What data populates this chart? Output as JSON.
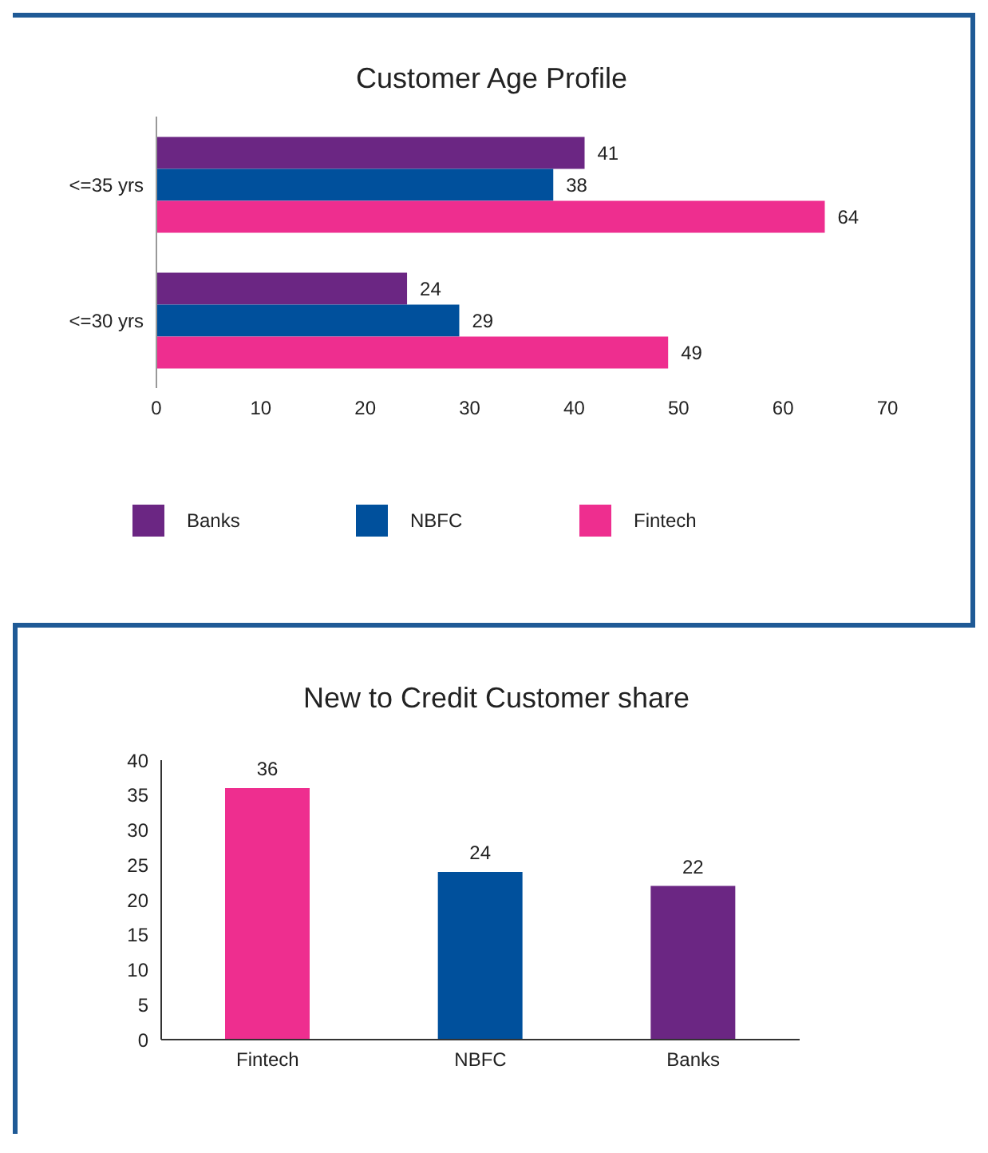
{
  "chart_data": [
    {
      "type": "bar",
      "title": "Customer Age Profile",
      "orientation": "horizontal",
      "categories": [
        "<=35 yrs",
        "<=30 yrs"
      ],
      "series": [
        {
          "name": "Banks",
          "color": "#6b2683",
          "values": [
            41,
            24
          ]
        },
        {
          "name": "NBFC",
          "color": "#00509c",
          "values": [
            38,
            29
          ]
        },
        {
          "name": "Fintech",
          "color": "#ee2e8f",
          "values": [
            64,
            49
          ]
        }
      ],
      "xlim": [
        0,
        70
      ],
      "xticks": [
        0,
        10,
        20,
        30,
        40,
        50,
        60,
        70
      ],
      "data_labels": true,
      "legend": "bottom",
      "grid": false
    },
    {
      "type": "bar",
      "title": "New to Credit Customer share",
      "categories": [
        "Fintech",
        "NBFC",
        "Banks"
      ],
      "values": [
        36,
        24,
        22
      ],
      "colors": [
        "#ee2e8f",
        "#00509c",
        "#6b2683"
      ],
      "ylim": [
        0,
        40
      ],
      "yticks": [
        0,
        5,
        10,
        15,
        20,
        25,
        30,
        35,
        40
      ],
      "data_labels": true,
      "grid": false
    }
  ]
}
